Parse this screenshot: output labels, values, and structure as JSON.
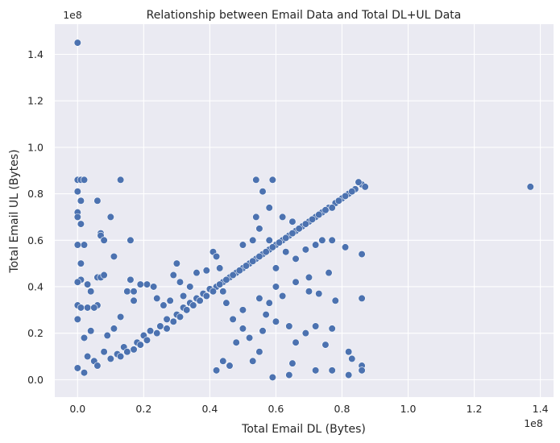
{
  "chart_data": {
    "type": "scatter",
    "title": "Relationship between Email Data and Total DL+UL Data",
    "xlabel": "Total Email DL (Bytes)",
    "ylabel": "Total Email UL (Bytes)",
    "x_offset_label": "1e8",
    "y_offset_label": "1e8",
    "x_scale": 100000000,
    "y_scale": 100000000,
    "xlim": [
      -0.069,
      1.44
    ],
    "ylim": [
      -0.075,
      1.53
    ],
    "x_ticks": [
      0.0,
      0.2,
      0.4,
      0.6,
      0.8,
      1.0,
      1.2,
      1.4
    ],
    "x_tick_labels": [
      "0.0",
      "0.2",
      "0.4",
      "0.6",
      "0.8",
      "1.0",
      "1.2",
      "1.4"
    ],
    "y_ticks": [
      0.0,
      0.2,
      0.4,
      0.6,
      0.8,
      1.0,
      1.2,
      1.4
    ],
    "y_tick_labels": [
      "0.0",
      "0.2",
      "0.4",
      "0.6",
      "0.8",
      "1.0",
      "1.2",
      "1.4"
    ],
    "grid": true,
    "marker_color": "#4c72b0",
    "background_color": "#eaeaf2",
    "series": [
      {
        "points": [
          [
            0.0,
            1.45
          ],
          [
            0.0,
            0.86
          ],
          [
            0.01,
            0.86
          ],
          [
            0.02,
            0.86
          ],
          [
            0.0,
            0.81
          ],
          [
            0.01,
            0.77
          ],
          [
            0.0,
            0.72
          ],
          [
            0.0,
            0.7
          ],
          [
            0.01,
            0.67
          ],
          [
            0.0,
            0.58
          ],
          [
            0.02,
            0.58
          ],
          [
            0.01,
            0.5
          ],
          [
            0.01,
            0.43
          ],
          [
            0.0,
            0.42
          ],
          [
            0.03,
            0.41
          ],
          [
            0.04,
            0.38
          ],
          [
            0.0,
            0.32
          ],
          [
            0.01,
            0.31
          ],
          [
            0.03,
            0.31
          ],
          [
            0.06,
            0.77
          ],
          [
            0.07,
            0.63
          ],
          [
            0.07,
            0.62
          ],
          [
            0.08,
            0.6
          ],
          [
            0.1,
            0.7
          ],
          [
            0.11,
            0.53
          ],
          [
            0.13,
            0.86
          ],
          [
            0.16,
            0.6
          ],
          [
            0.06,
            0.44
          ],
          [
            0.07,
            0.44
          ],
          [
            0.08,
            0.45
          ],
          [
            0.06,
            0.32
          ],
          [
            0.05,
            0.31
          ],
          [
            0.15,
            0.38
          ],
          [
            0.16,
            0.43
          ],
          [
            0.17,
            0.38
          ],
          [
            0.19,
            0.41
          ],
          [
            0.21,
            0.41
          ],
          [
            0.23,
            0.4
          ],
          [
            0.29,
            0.45
          ],
          [
            0.3,
            0.5
          ],
          [
            0.31,
            0.42
          ],
          [
            0.13,
            0.27
          ],
          [
            0.17,
            0.34
          ],
          [
            0.11,
            0.22
          ],
          [
            0.09,
            0.19
          ],
          [
            0.04,
            0.21
          ],
          [
            0.02,
            0.18
          ],
          [
            0.0,
            0.26
          ],
          [
            0.08,
            0.12
          ],
          [
            0.03,
            0.1
          ],
          [
            0.05,
            0.08
          ],
          [
            0.0,
            0.05
          ],
          [
            0.02,
            0.03
          ],
          [
            0.06,
            0.06
          ],
          [
            0.1,
            0.09
          ],
          [
            0.12,
            0.11
          ],
          [
            0.14,
            0.14
          ],
          [
            0.18,
            0.16
          ],
          [
            0.2,
            0.19
          ],
          [
            0.22,
            0.21
          ],
          [
            0.25,
            0.23
          ],
          [
            0.27,
            0.26
          ],
          [
            0.3,
            0.28
          ],
          [
            0.32,
            0.31
          ],
          [
            0.34,
            0.33
          ],
          [
            0.36,
            0.35
          ],
          [
            0.38,
            0.37
          ],
          [
            0.4,
            0.39
          ],
          [
            0.42,
            0.4
          ],
          [
            0.44,
            0.42
          ],
          [
            0.46,
            0.44
          ],
          [
            0.48,
            0.46
          ],
          [
            0.5,
            0.48
          ],
          [
            0.52,
            0.5
          ],
          [
            0.54,
            0.52
          ],
          [
            0.56,
            0.54
          ],
          [
            0.58,
            0.56
          ],
          [
            0.6,
            0.58
          ],
          [
            0.62,
            0.6
          ],
          [
            0.64,
            0.62
          ],
          [
            0.66,
            0.64
          ],
          [
            0.68,
            0.66
          ],
          [
            0.7,
            0.68
          ],
          [
            0.72,
            0.7
          ],
          [
            0.74,
            0.72
          ],
          [
            0.76,
            0.74
          ],
          [
            0.78,
            0.76
          ],
          [
            0.8,
            0.78
          ],
          [
            0.82,
            0.8
          ],
          [
            0.84,
            0.82
          ],
          [
            0.86,
            0.84
          ],
          [
            0.87,
            0.83
          ],
          [
            0.85,
            0.85
          ],
          [
            0.83,
            0.81
          ],
          [
            0.81,
            0.79
          ],
          [
            0.79,
            0.77
          ],
          [
            0.77,
            0.74
          ],
          [
            0.75,
            0.73
          ],
          [
            0.73,
            0.71
          ],
          [
            0.71,
            0.69
          ],
          [
            0.69,
            0.67
          ],
          [
            0.67,
            0.65
          ],
          [
            0.65,
            0.63
          ],
          [
            0.63,
            0.61
          ],
          [
            0.61,
            0.59
          ],
          [
            0.59,
            0.57
          ],
          [
            0.57,
            0.55
          ],
          [
            0.55,
            0.53
          ],
          [
            0.53,
            0.51
          ],
          [
            0.51,
            0.49
          ],
          [
            0.49,
            0.47
          ],
          [
            0.47,
            0.45
          ],
          [
            0.45,
            0.43
          ],
          [
            0.43,
            0.41
          ],
          [
            0.41,
            0.38
          ],
          [
            0.39,
            0.36
          ],
          [
            0.37,
            0.34
          ],
          [
            0.35,
            0.32
          ],
          [
            0.33,
            0.3
          ],
          [
            0.31,
            0.27
          ],
          [
            0.29,
            0.25
          ],
          [
            0.27,
            0.22
          ],
          [
            0.24,
            0.2
          ],
          [
            0.21,
            0.17
          ],
          [
            0.19,
            0.15
          ],
          [
            0.17,
            0.13
          ],
          [
            0.15,
            0.12
          ],
          [
            0.13,
            0.1
          ],
          [
            0.54,
            0.86
          ],
          [
            0.59,
            0.86
          ],
          [
            0.56,
            0.81
          ],
          [
            0.58,
            0.74
          ],
          [
            0.54,
            0.7
          ],
          [
            0.62,
            0.7
          ],
          [
            0.65,
            0.68
          ],
          [
            0.58,
            0.6
          ],
          [
            0.5,
            0.58
          ],
          [
            0.53,
            0.6
          ],
          [
            0.55,
            0.65
          ],
          [
            0.6,
            0.48
          ],
          [
            0.66,
            0.52
          ],
          [
            0.7,
            0.44
          ],
          [
            0.72,
            0.58
          ],
          [
            0.74,
            0.6
          ],
          [
            0.77,
            0.6
          ],
          [
            0.86,
            0.54
          ],
          [
            0.81,
            0.57
          ],
          [
            0.69,
            0.56
          ],
          [
            0.63,
            0.55
          ],
          [
            0.6,
            0.4
          ],
          [
            0.62,
            0.36
          ],
          [
            0.66,
            0.42
          ],
          [
            0.7,
            0.38
          ],
          [
            0.73,
            0.37
          ],
          [
            0.76,
            0.46
          ],
          [
            0.78,
            0.34
          ],
          [
            0.86,
            0.35
          ],
          [
            0.57,
            0.28
          ],
          [
            0.58,
            0.33
          ],
          [
            0.55,
            0.35
          ],
          [
            0.6,
            0.25
          ],
          [
            0.64,
            0.23
          ],
          [
            0.66,
            0.16
          ],
          [
            0.69,
            0.2
          ],
          [
            0.72,
            0.23
          ],
          [
            0.75,
            0.15
          ],
          [
            0.77,
            0.22
          ],
          [
            0.82,
            0.12
          ],
          [
            0.83,
            0.09
          ],
          [
            0.86,
            0.06
          ],
          [
            0.86,
            0.04
          ],
          [
            0.82,
            0.02
          ],
          [
            0.77,
            0.04
          ],
          [
            0.72,
            0.04
          ],
          [
            0.65,
            0.07
          ],
          [
            0.64,
            0.02
          ],
          [
            0.59,
            0.01
          ],
          [
            0.55,
            0.12
          ],
          [
            0.52,
            0.18
          ],
          [
            0.5,
            0.22
          ],
          [
            0.48,
            0.16
          ],
          [
            0.46,
            0.06
          ],
          [
            0.44,
            0.08
          ],
          [
            0.42,
            0.04
          ],
          [
            0.53,
            0.08
          ],
          [
            0.56,
            0.21
          ],
          [
            0.5,
            0.3
          ],
          [
            0.47,
            0.26
          ],
          [
            0.45,
            0.33
          ],
          [
            0.44,
            0.38
          ],
          [
            0.41,
            0.55
          ],
          [
            0.42,
            0.53
          ],
          [
            0.43,
            0.48
          ],
          [
            0.39,
            0.47
          ],
          [
            0.36,
            0.46
          ],
          [
            0.34,
            0.4
          ],
          [
            0.32,
            0.36
          ],
          [
            0.28,
            0.34
          ],
          [
            0.26,
            0.32
          ],
          [
            0.24,
            0.35
          ],
          [
            1.37,
            0.83
          ]
        ]
      }
    ]
  }
}
